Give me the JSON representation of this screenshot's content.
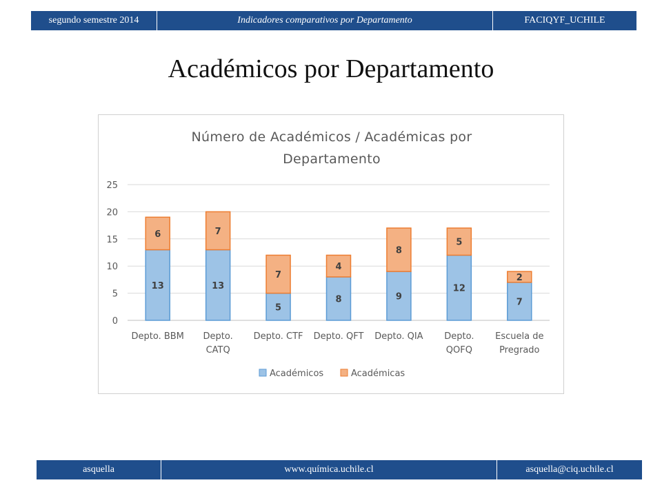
{
  "header": {
    "left": "segundo semestre 2014",
    "center": "Indicadores comparativos por Departamento",
    "right": "FACIQYF_UCHILE"
  },
  "slide": {
    "title": "Académicos por Departamento"
  },
  "footer": {
    "left": "asquella",
    "center": "www.química.uchile.cl",
    "right": "asquella@ciq.uchile.cl"
  },
  "chart_data": {
    "type": "bar",
    "stacked": true,
    "title_lines": [
      "Número de Académicos / Académicas por",
      "Departamento"
    ],
    "categories": [
      [
        "Depto. BBM"
      ],
      [
        "Depto.",
        "CATQ"
      ],
      [
        "Depto. CTF"
      ],
      [
        "Depto. QFT"
      ],
      [
        "Depto. QIA"
      ],
      [
        "Depto.",
        "QOFQ"
      ],
      [
        "Escuela de",
        "Pregrado"
      ]
    ],
    "series": [
      {
        "name": "Académicos",
        "values": [
          13,
          13,
          5,
          8,
          9,
          12,
          7
        ],
        "color": "#9dc3e6",
        "stroke": "#5b9bd5"
      },
      {
        "name": "Académicas",
        "values": [
          6,
          7,
          7,
          4,
          8,
          5,
          2
        ],
        "color": "#f4b183",
        "stroke": "#ed7d31"
      }
    ],
    "ylim": [
      0,
      25
    ],
    "yticks": [
      0,
      5,
      10,
      15,
      20,
      25
    ],
    "grid": true,
    "legend_position": "bottom"
  }
}
